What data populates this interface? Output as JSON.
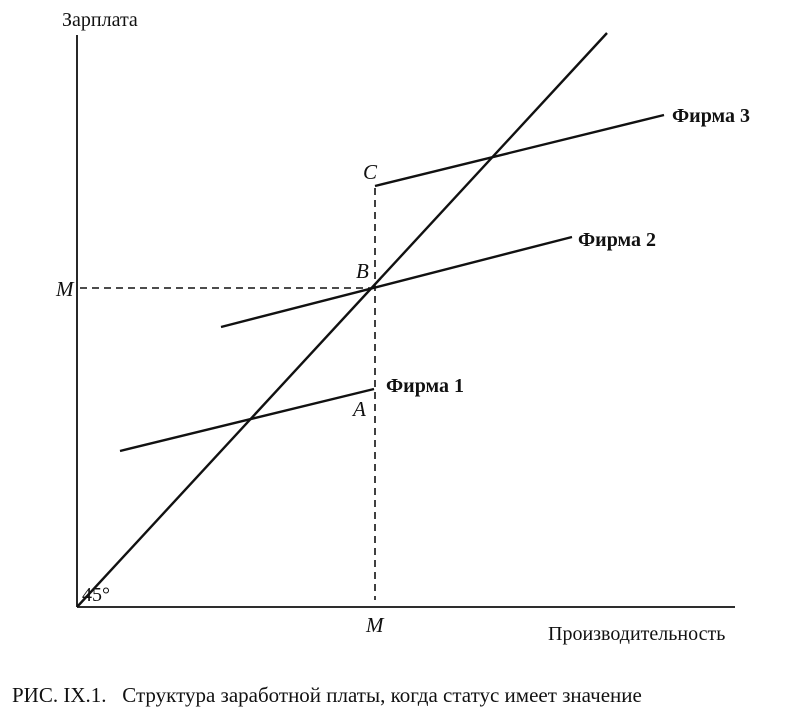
{
  "figure": {
    "y_axis_label": "Зарплата",
    "x_axis_label": "Производительность",
    "y_tick": "M",
    "x_tick": "M",
    "angle_label": "45°",
    "points": {
      "a": "A",
      "b": "B",
      "c": "C"
    },
    "firms": [
      "Фирма 1",
      "Фирма 2",
      "Фирма 3"
    ],
    "caption": "РИС. IX.1.   Структура заработной платы, когда статус имеет значение"
  }
}
